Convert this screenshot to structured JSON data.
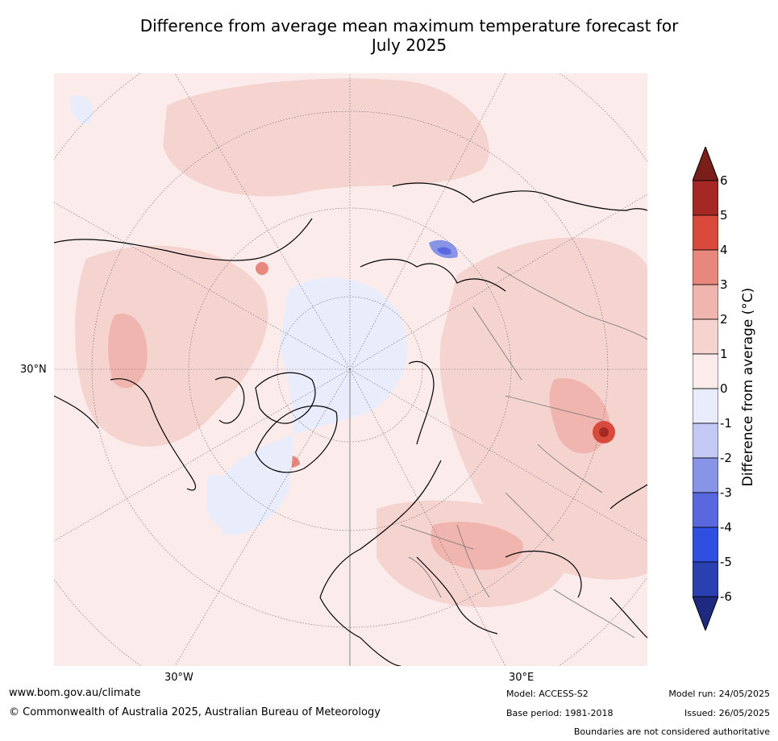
{
  "title_line1": "Difference from average mean maximum temperature forecast for",
  "title_line2": "July 2025",
  "map": {
    "lat_label": "30°N",
    "lon_labels": [
      "30°W",
      "30°E"
    ]
  },
  "colorbar": {
    "label": "Difference from average ($^\\circ$C)",
    "label_display": "Difference from average (°C)",
    "ticks": [
      "6",
      "5",
      "4",
      "3",
      "2",
      "1",
      "0",
      "-1",
      "-2",
      "-3",
      "-4",
      "-5",
      "-6"
    ],
    "colors_top_to_bottom": [
      "#a62824",
      "#d94a3d",
      "#e8877c",
      "#efb5ae",
      "#f5d4d0",
      "#fbeceb",
      "#e9ecfb",
      "#c3c9f2",
      "#8894e6",
      "#5a68e0",
      "#2e4fe0",
      "#2a3fb0"
    ],
    "over_color": "#7a1e1a",
    "under_color": "#1e2a80"
  },
  "footer": {
    "website": "www.bom.gov.au/climate",
    "copyright": "© Commonwealth of Australia 2025, Australian Bureau of Meteorology",
    "model": "Model: ACCESS-S2",
    "base_period": "Base period: 1981-2018",
    "model_run": "Model run: 24/05/2025",
    "issued": "Issued: 26/05/2025",
    "disclaimer": "Boundaries are not considered authoritative"
  }
}
